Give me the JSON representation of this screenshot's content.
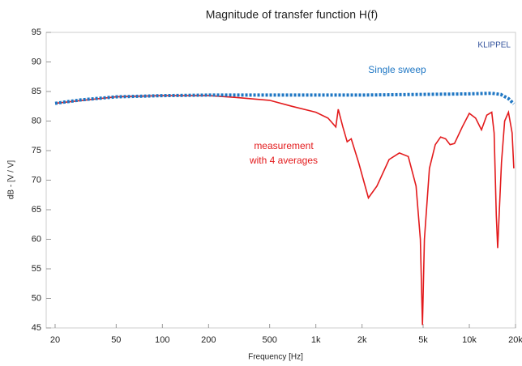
{
  "chart_data": {
    "type": "line",
    "title": "Magnitude of transfer function H(f)",
    "xlabel": "Frequency [Hz]",
    "ylabel": "dB - [V / V]",
    "xscale": "log",
    "xlim": [
      17.5,
      20000
    ],
    "ylim": [
      45,
      95
    ],
    "xticks": [
      20,
      50,
      100,
      200,
      500,
      {
        "value": 1000,
        "label": "1k"
      },
      {
        "value": 2000,
        "label": "2k"
      },
      {
        "value": 5000,
        "label": "5k"
      },
      {
        "value": 10000,
        "label": "10k"
      },
      {
        "value": 20000,
        "label": "20k"
      }
    ],
    "yticks": [
      45,
      50,
      55,
      60,
      65,
      70,
      75,
      80,
      85,
      90,
      95
    ],
    "annotations": [
      {
        "text": "KLIPPEL",
        "color": "#2f4f9a"
      },
      {
        "text": "Single sweep",
        "color": "#1f77c4"
      },
      {
        "text": "measurement",
        "color": "#e31a1c"
      },
      {
        "text": "with 4 averages",
        "color": "#e31a1c"
      }
    ],
    "series": [
      {
        "name": "measurement with 4 averages",
        "color": "#e31a1c",
        "dashed": false,
        "x": [
          20,
          50,
          100,
          200,
          300,
          500,
          700,
          1000,
          1200,
          1350,
          1400,
          1500,
          1600,
          1700,
          1900,
          2200,
          2500,
          3000,
          3500,
          4000,
          4500,
          4800,
          4950,
          5100,
          5500,
          6000,
          6500,
          7000,
          7500,
          8000,
          9000,
          10000,
          11000,
          12000,
          13000,
          14000,
          14500,
          15000,
          15300,
          15700,
          16200,
          17000,
          18000,
          19000,
          19500
        ],
        "values": [
          83,
          84.1,
          84.3,
          84.3,
          84.0,
          83.5,
          82.5,
          81.5,
          80.5,
          79,
          82,
          79,
          76.5,
          77,
          73,
          67,
          69,
          73.5,
          74.6,
          74,
          69,
          60,
          45.5,
          60,
          72,
          76,
          77.3,
          77,
          76,
          76.2,
          79,
          81.3,
          80.5,
          78.5,
          81,
          81.5,
          78,
          64,
          58.5,
          65,
          73,
          80,
          81.5,
          78,
          72
        ]
      },
      {
        "name": "Single sweep",
        "color": "#1f77c4",
        "dashed": true,
        "x": [
          20,
          30,
          50,
          100,
          200,
          500,
          1000,
          2000,
          5000,
          10000,
          14000,
          16000,
          18000,
          19500
        ],
        "values": [
          83,
          83.6,
          84.1,
          84.3,
          84.4,
          84.4,
          84.4,
          84.4,
          84.5,
          84.6,
          84.7,
          84.5,
          83.8,
          82.9
        ]
      }
    ]
  }
}
